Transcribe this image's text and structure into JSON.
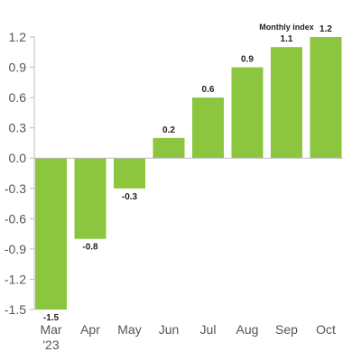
{
  "chart_data": {
    "type": "bar",
    "title": "",
    "xlabel": "",
    "ylabel": "",
    "categories": [
      "Mar '23",
      "Apr",
      "May",
      "Jun",
      "Jul",
      "Aug",
      "Sep",
      "Oct"
    ],
    "category_lines": [
      [
        "Mar",
        "'23"
      ],
      [
        "Apr"
      ],
      [
        "May"
      ],
      [
        "Jun"
      ],
      [
        "Jul"
      ],
      [
        "Aug"
      ],
      [
        "Sep"
      ],
      [
        "Oct"
      ]
    ],
    "series": [
      {
        "name": "Monthly index",
        "values": [
          -1.5,
          -0.8,
          -0.3,
          0.2,
          0.6,
          0.9,
          1.1,
          1.2
        ]
      }
    ],
    "data_labels": [
      "-1.5",
      "-0.8",
      "-0.3",
      "0.2",
      "0.6",
      "0.9",
      "1.1",
      "1.2"
    ],
    "ylim": [
      -1.5,
      1.2
    ],
    "yticks": [
      1.2,
      0.9,
      0.6,
      0.3,
      0.0,
      -0.3,
      -0.6,
      -0.9,
      -1.2,
      -1.5
    ],
    "ytick_labels": [
      "1.2",
      "0.9",
      "0.6",
      "0.3",
      "0.0",
      "-0.3",
      "-0.6",
      "-0.9",
      "-1.2",
      "-1.5"
    ],
    "grid": false,
    "legend_position": "top-right",
    "colors": {
      "bar": "#8cc63f",
      "axis": "#bdbdbd",
      "text": "#555555"
    }
  }
}
